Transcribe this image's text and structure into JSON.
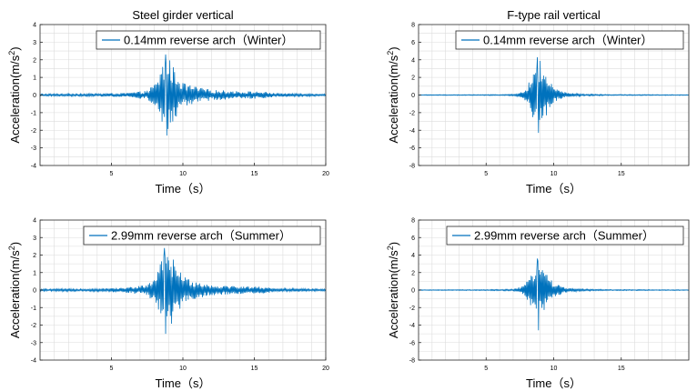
{
  "chart_data": [
    {
      "type": "line",
      "title": "Steel girder vertical",
      "xlabel": "Time（s）",
      "ylabel": "Acceleration(m/s2)",
      "xlim": [
        0,
        20
      ],
      "ylim": [
        -4,
        4
      ],
      "xticks": [
        5,
        10,
        15,
        20
      ],
      "yticks": [
        -4,
        -3,
        -2,
        -1,
        0,
        1,
        2,
        3,
        4
      ],
      "grid": true,
      "legend_position": "top-right",
      "series": [
        {
          "name": "0.14mm reverse arch（Winter）",
          "color": "#0072BD",
          "samples_per_second": 24,
          "peak_time": 8.8,
          "peak_max": 2.3,
          "peak_min": -2.3,
          "envelope": {
            "t": [
              0,
              4,
              6,
              7.5,
              8.2,
              8.6,
              9.0,
              9.4,
              10,
              11,
              12,
              14,
              15.5,
              16.5,
              20
            ],
            "amp": [
              0.06,
              0.08,
              0.12,
              0.25,
              0.8,
              1.9,
              2.2,
              1.5,
              0.7,
              0.45,
              0.3,
              0.22,
              0.2,
              0.1,
              0.06
            ]
          }
        }
      ]
    },
    {
      "type": "line",
      "title": "F-type rail vertical",
      "xlabel": "Time（s）",
      "ylabel": "Acceleration(m/s2)",
      "xlim": [
        0,
        20
      ],
      "ylim": [
        -8,
        8
      ],
      "xticks": [
        5,
        10,
        15
      ],
      "yticks": [
        -8,
        -6,
        -4,
        -2,
        0,
        2,
        4,
        6,
        8
      ],
      "grid": true,
      "legend_position": "top-right",
      "series": [
        {
          "name": "0.14mm reverse arch（Winter）",
          "color": "#0072BD",
          "samples_per_second": 24,
          "peak_time": 8.8,
          "peak_max": 4.3,
          "peak_min": -4.3,
          "envelope": {
            "t": [
              0,
              5,
              7,
              7.8,
              8.3,
              8.7,
              9.0,
              9.4,
              10,
              11,
              12,
              14,
              20
            ],
            "amp": [
              0.04,
              0.05,
              0.08,
              0.4,
              1.8,
              3.8,
              4.0,
              2.5,
              0.8,
              0.25,
              0.12,
              0.06,
              0.04
            ]
          }
        }
      ]
    },
    {
      "type": "line",
      "title": "",
      "xlabel": "Time（s）",
      "ylabel": "Acceleration(m/s2)",
      "xlim": [
        0,
        20
      ],
      "ylim": [
        -4,
        4
      ],
      "xticks": [
        5,
        10,
        15,
        20
      ],
      "yticks": [
        -4,
        -3,
        -2,
        -1,
        0,
        1,
        2,
        3,
        4
      ],
      "grid": true,
      "legend_position": "top-right",
      "series": [
        {
          "name": "2.99mm reverse arch（Summer）",
          "color": "#0072BD",
          "samples_per_second": 24,
          "peak_time": 8.7,
          "peak_max": 2.4,
          "peak_min": -2.5,
          "envelope": {
            "t": [
              0,
              4,
              6,
              7.5,
              8.2,
              8.6,
              9.0,
              9.4,
              10,
              11,
              12,
              14,
              15.5,
              16.5,
              20
            ],
            "amp": [
              0.06,
              0.08,
              0.15,
              0.3,
              1.0,
              2.0,
              2.3,
              1.7,
              0.8,
              0.5,
              0.3,
              0.22,
              0.2,
              0.1,
              0.06
            ]
          }
        }
      ]
    },
    {
      "type": "line",
      "title": "",
      "xlabel": "Time（s）",
      "ylabel": "Acceleration(m/s2)",
      "xlim": [
        0,
        20
      ],
      "ylim": [
        -8,
        8
      ],
      "xticks": [
        5,
        10,
        15
      ],
      "yticks": [
        -8,
        -6,
        -4,
        -2,
        0,
        2,
        4,
        6,
        8
      ],
      "grid": true,
      "legend_position": "top-right",
      "series": [
        {
          "name": "2.99mm reverse arch（Summer）",
          "color": "#0072BD",
          "samples_per_second": 24,
          "peak_time": 8.8,
          "peak_max": 3.6,
          "peak_min": -4.6,
          "envelope": {
            "t": [
              0,
              5,
              7,
              7.8,
              8.3,
              8.7,
              9.0,
              9.4,
              10,
              11,
              12,
              14,
              20
            ],
            "amp": [
              0.04,
              0.05,
              0.1,
              0.5,
              1.8,
              3.3,
              3.5,
              2.3,
              0.8,
              0.25,
              0.12,
              0.06,
              0.04
            ]
          }
        }
      ]
    }
  ]
}
